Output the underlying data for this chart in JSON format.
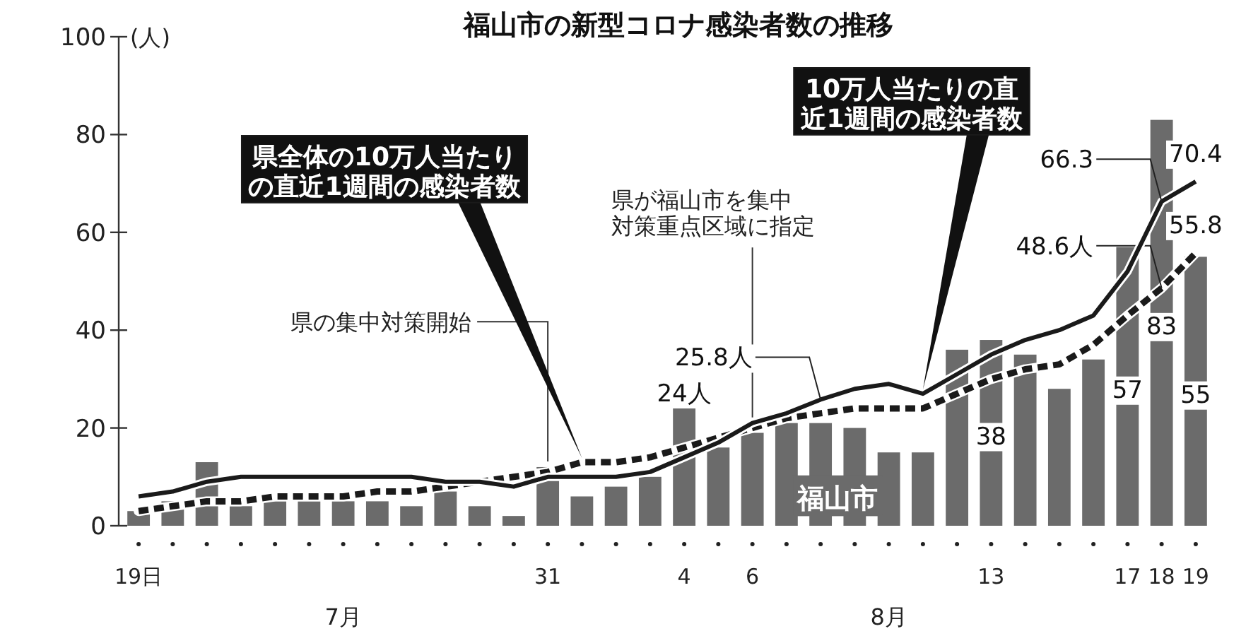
{
  "chart_data": {
    "type": "bar",
    "title": "福山市の新型コロナ感染者数の推移",
    "ylabel": "(人)",
    "categories": [
      "19日",
      null,
      null,
      null,
      null,
      null,
      null,
      null,
      null,
      null,
      null,
      null,
      "31",
      null,
      null,
      null,
      "4",
      null,
      "6",
      null,
      null,
      null,
      null,
      null,
      null,
      "13",
      null,
      null,
      null,
      "17",
      "18",
      "19"
    ],
    "series": [
      {
        "name": "福山市",
        "type": "bar",
        "color": "#6b6b6b",
        "values": [
          3,
          5,
          13,
          4,
          5,
          5,
          5,
          5,
          4,
          7,
          4,
          2,
          12,
          6,
          8,
          10,
          24,
          16,
          19,
          21,
          21,
          20,
          15,
          15,
          36,
          38,
          35,
          28,
          34,
          57,
          83,
          55
        ],
        "value_labels": [
          null,
          null,
          null,
          null,
          null,
          null,
          null,
          null,
          null,
          null,
          null,
          null,
          null,
          null,
          null,
          null,
          "24人",
          null,
          null,
          null,
          null,
          null,
          null,
          null,
          null,
          "38",
          null,
          null,
          null,
          "57",
          "83",
          "55"
        ]
      },
      {
        "name": "県全体の10万人当たりの直近1週間の感染者数",
        "type": "line",
        "line_style": "dashed",
        "color": "#1a1a1a",
        "values": [
          3,
          4,
          5,
          5,
          6,
          6,
          6,
          7,
          7,
          8,
          9,
          10,
          11,
          13,
          13,
          14,
          16,
          18,
          20,
          22,
          23,
          24,
          24,
          24,
          27,
          30,
          32,
          33,
          37,
          43,
          48.6,
          55.8
        ],
        "value_labels": [
          null,
          null,
          null,
          null,
          null,
          null,
          null,
          null,
          null,
          null,
          null,
          null,
          null,
          null,
          null,
          null,
          null,
          null,
          null,
          null,
          null,
          null,
          null,
          null,
          null,
          null,
          null,
          null,
          null,
          null,
          "48.6人",
          "55.8"
        ]
      },
      {
        "name": "10万人当たりの直近1週間の感染者数",
        "type": "line",
        "line_style": "solid",
        "color": "#1a1a1a",
        "values": [
          6,
          7,
          9,
          10,
          10,
          10,
          10,
          10,
          10,
          9,
          9,
          8,
          10,
          10,
          10,
          11,
          14,
          17,
          21,
          23,
          25.8,
          28,
          29,
          27,
          31,
          35,
          38,
          40,
          43,
          52,
          66.3,
          70.4
        ],
        "value_labels": [
          null,
          null,
          null,
          null,
          null,
          null,
          null,
          null,
          null,
          null,
          null,
          null,
          null,
          null,
          null,
          null,
          null,
          null,
          null,
          null,
          "25.8人",
          null,
          null,
          null,
          null,
          null,
          null,
          null,
          null,
          null,
          "66.3",
          "70.4"
        ]
      }
    ],
    "ylim": [
      0,
      100
    ],
    "yticks": [
      0,
      20,
      40,
      60,
      80,
      100
    ],
    "ref_lines": [
      {
        "axis": "x",
        "value": "31",
        "label": "県の集中対策開始"
      },
      {
        "axis": "x",
        "value": "6",
        "label": "県が福山市を集中対策重点区域に指定"
      }
    ],
    "annotations": [
      "7月",
      "8月"
    ]
  }
}
